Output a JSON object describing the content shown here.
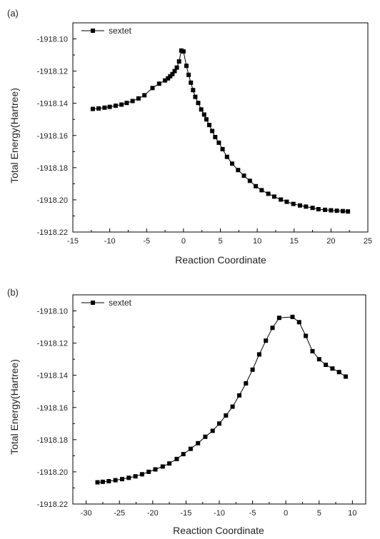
{
  "chart_data": [
    {
      "panel": "(a)",
      "type": "line",
      "title": "",
      "xlabel": "Reaction Coordinate",
      "ylabel": "Total Energy(Hartree)",
      "xlim": [
        -15,
        25
      ],
      "ylim": [
        -1918.22,
        -1918.09
      ],
      "xticks": [
        -15,
        -10,
        -5,
        0,
        5,
        10,
        15,
        20,
        25
      ],
      "xtick_labels": [
        "-15",
        "-10",
        "-5",
        "0",
        "5",
        "10",
        "15",
        "20",
        "25"
      ],
      "yticks": [
        -1918.1,
        -1918.12,
        -1918.14,
        -1918.16,
        -1918.18,
        -1918.2,
        -1918.22
      ],
      "ytick_labels": [
        "-1918.10",
        "-1918.12",
        "-1918.14",
        "-1918.16",
        "-1918.18",
        "-1918.20",
        "-1918.22"
      ],
      "legend": "top-left",
      "series": [
        {
          "name": "sextet",
          "marker": "square",
          "x": [
            -12.3,
            -11.5,
            -10.7,
            -10.0,
            -9.2,
            -8.4,
            -7.7,
            -6.9,
            -6.1,
            -5.3,
            -4.2,
            -3.3,
            -2.5,
            -2.1,
            -1.8,
            -1.5,
            -1.2,
            -0.9,
            -0.6,
            -0.3,
            0.0,
            0.4,
            0.7,
            1.0,
            1.3,
            1.6,
            2.0,
            2.4,
            2.8,
            3.1,
            3.5,
            3.9,
            4.3,
            4.8,
            5.3,
            5.9,
            6.6,
            7.4,
            8.2,
            9.0,
            9.8,
            10.6,
            11.5,
            12.3,
            13.2,
            14.0,
            14.9,
            15.8,
            16.6,
            17.5,
            18.3,
            19.2,
            20.0,
            20.8,
            21.6,
            22.3
          ],
          "y": [
            -1918.1435,
            -1918.1432,
            -1918.1427,
            -1918.1422,
            -1918.1415,
            -1918.1408,
            -1918.1398,
            -1918.1386,
            -1918.137,
            -1918.135,
            -1918.1305,
            -1918.1278,
            -1918.1258,
            -1918.1245,
            -1918.1232,
            -1918.1218,
            -1918.12,
            -1918.1178,
            -1918.114,
            -1918.1072,
            -1918.1078,
            -1918.1167,
            -1918.1223,
            -1918.1272,
            -1918.1318,
            -1918.136,
            -1918.1398,
            -1918.1438,
            -1918.147,
            -1918.15,
            -1918.1535,
            -1918.1572,
            -1918.161,
            -1918.1645,
            -1918.1685,
            -1918.1733,
            -1918.1775,
            -1918.1815,
            -1918.185,
            -1918.1882,
            -1918.1915,
            -1918.194,
            -1918.1962,
            -1918.198,
            -1918.1998,
            -1918.2012,
            -1918.2025,
            -1918.2035,
            -1918.2042,
            -1918.205,
            -1918.2058,
            -1918.2062,
            -1918.2065,
            -1918.2068,
            -1918.207,
            -1918.2072
          ]
        }
      ]
    },
    {
      "panel": "(b)",
      "type": "line",
      "title": "",
      "xlabel": "Reaction Coordinate",
      "ylabel": "Total Energy(Hartree)",
      "xlim": [
        -32,
        12
      ],
      "ylim": [
        -1918.22,
        -1918.09
      ],
      "xticks": [
        -30,
        -25,
        -20,
        -15,
        -10,
        -5,
        0,
        5,
        10
      ],
      "xtick_labels": [
        "-30",
        "-25",
        "-20",
        "-15",
        "-10",
        "-5",
        "0",
        "5",
        "10"
      ],
      "yticks": [
        -1918.1,
        -1918.12,
        -1918.14,
        -1918.16,
        -1918.18,
        -1918.2,
        -1918.22
      ],
      "ytick_labels": [
        "-1918.10",
        "-1918.12",
        "-1918.14",
        "-1918.16",
        "-1918.18",
        "-1918.20",
        "-1918.22"
      ],
      "legend": "top-left",
      "series": [
        {
          "name": "sextet",
          "marker": "square",
          "x": [
            -28.3,
            -27.5,
            -26.6,
            -25.6,
            -24.6,
            -23.6,
            -22.6,
            -21.6,
            -20.6,
            -19.6,
            -18.5,
            -17.5,
            -16.4,
            -15.4,
            -14.3,
            -13.2,
            -12.1,
            -11.0,
            -10.0,
            -9.0,
            -8.0,
            -7.0,
            -6.0,
            -5.0,
            -4.0,
            -3.0,
            -2.0,
            -1.0,
            1.0,
            2.0,
            3.0,
            4.0,
            5.0,
            6.0,
            7.0,
            8.0,
            9.0
          ],
          "y": [
            -1918.2065,
            -1918.2062,
            -1918.2058,
            -1918.2052,
            -1918.2045,
            -1918.2037,
            -1918.2028,
            -1918.2015,
            -1918.2,
            -1918.1985,
            -1918.1967,
            -1918.1948,
            -1918.192,
            -1918.189,
            -1918.1857,
            -1918.1822,
            -1918.1782,
            -1918.1745,
            -1918.17,
            -1918.165,
            -1918.1595,
            -1918.1525,
            -1918.145,
            -1918.1365,
            -1918.127,
            -1918.1185,
            -1918.1105,
            -1918.1043,
            -1918.1037,
            -1918.107,
            -1918.1155,
            -1918.125,
            -1918.13,
            -1918.1335,
            -1918.1358,
            -1918.138,
            -1918.1408
          ]
        }
      ]
    }
  ]
}
